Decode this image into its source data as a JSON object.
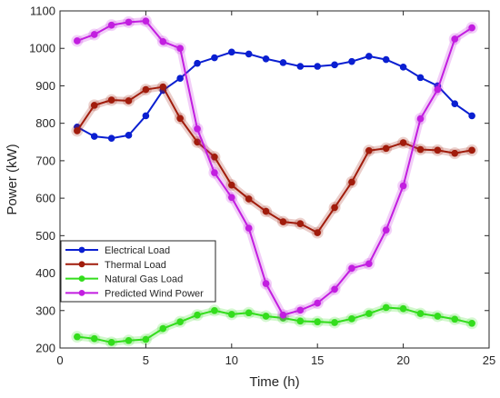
{
  "chart_data": {
    "type": "line",
    "title": "",
    "xlabel": "Time (h)",
    "ylabel": "Power (kW)",
    "xlim": [
      0,
      25
    ],
    "ylim": [
      200,
      1100
    ],
    "xticks": [
      "0",
      "5",
      "10",
      "15",
      "20",
      "25"
    ],
    "yticks": [
      "200",
      "300",
      "400",
      "500",
      "600",
      "700",
      "800",
      "900",
      "1000",
      "1100"
    ],
    "grid": false,
    "legend_position": "bottom-left",
    "x": [
      1,
      2,
      3,
      4,
      5,
      6,
      7,
      8,
      9,
      10,
      11,
      12,
      13,
      14,
      15,
      16,
      17,
      18,
      19,
      20,
      21,
      22,
      23,
      24
    ],
    "series": [
      {
        "name": "Electrical Load",
        "color": "#0a1fd1",
        "halo": false,
        "values": [
          790,
          765,
          760,
          768,
          820,
          888,
          920,
          960,
          975,
          990,
          985,
          972,
          962,
          952,
          952,
          956,
          965,
          979,
          970,
          950,
          922,
          900,
          852,
          820
        ]
      },
      {
        "name": "Thermal Load",
        "color": "#a11c0c",
        "halo": true,
        "values": [
          780,
          848,
          862,
          860,
          890,
          897,
          813,
          750,
          710,
          635,
          598,
          565,
          537,
          532,
          508,
          575,
          643,
          727,
          733,
          748,
          730,
          728,
          720,
          728
        ]
      },
      {
        "name": "Natural Gas Load",
        "color": "#33dd1c",
        "halo": true,
        "values": [
          230,
          225,
          215,
          220,
          223,
          252,
          270,
          288,
          300,
          290,
          294,
          285,
          280,
          272,
          270,
          268,
          278,
          292,
          308,
          305,
          292,
          285,
          277,
          266
        ]
      },
      {
        "name": "Predicted Wind Power",
        "color": "#c21ee0",
        "halo": true,
        "values": [
          1020,
          1037,
          1062,
          1070,
          1073,
          1018,
          1000,
          785,
          668,
          602,
          520,
          372,
          288,
          301,
          320,
          357,
          413,
          425,
          515,
          633,
          812,
          890,
          1025,
          1055
        ]
      }
    ]
  }
}
